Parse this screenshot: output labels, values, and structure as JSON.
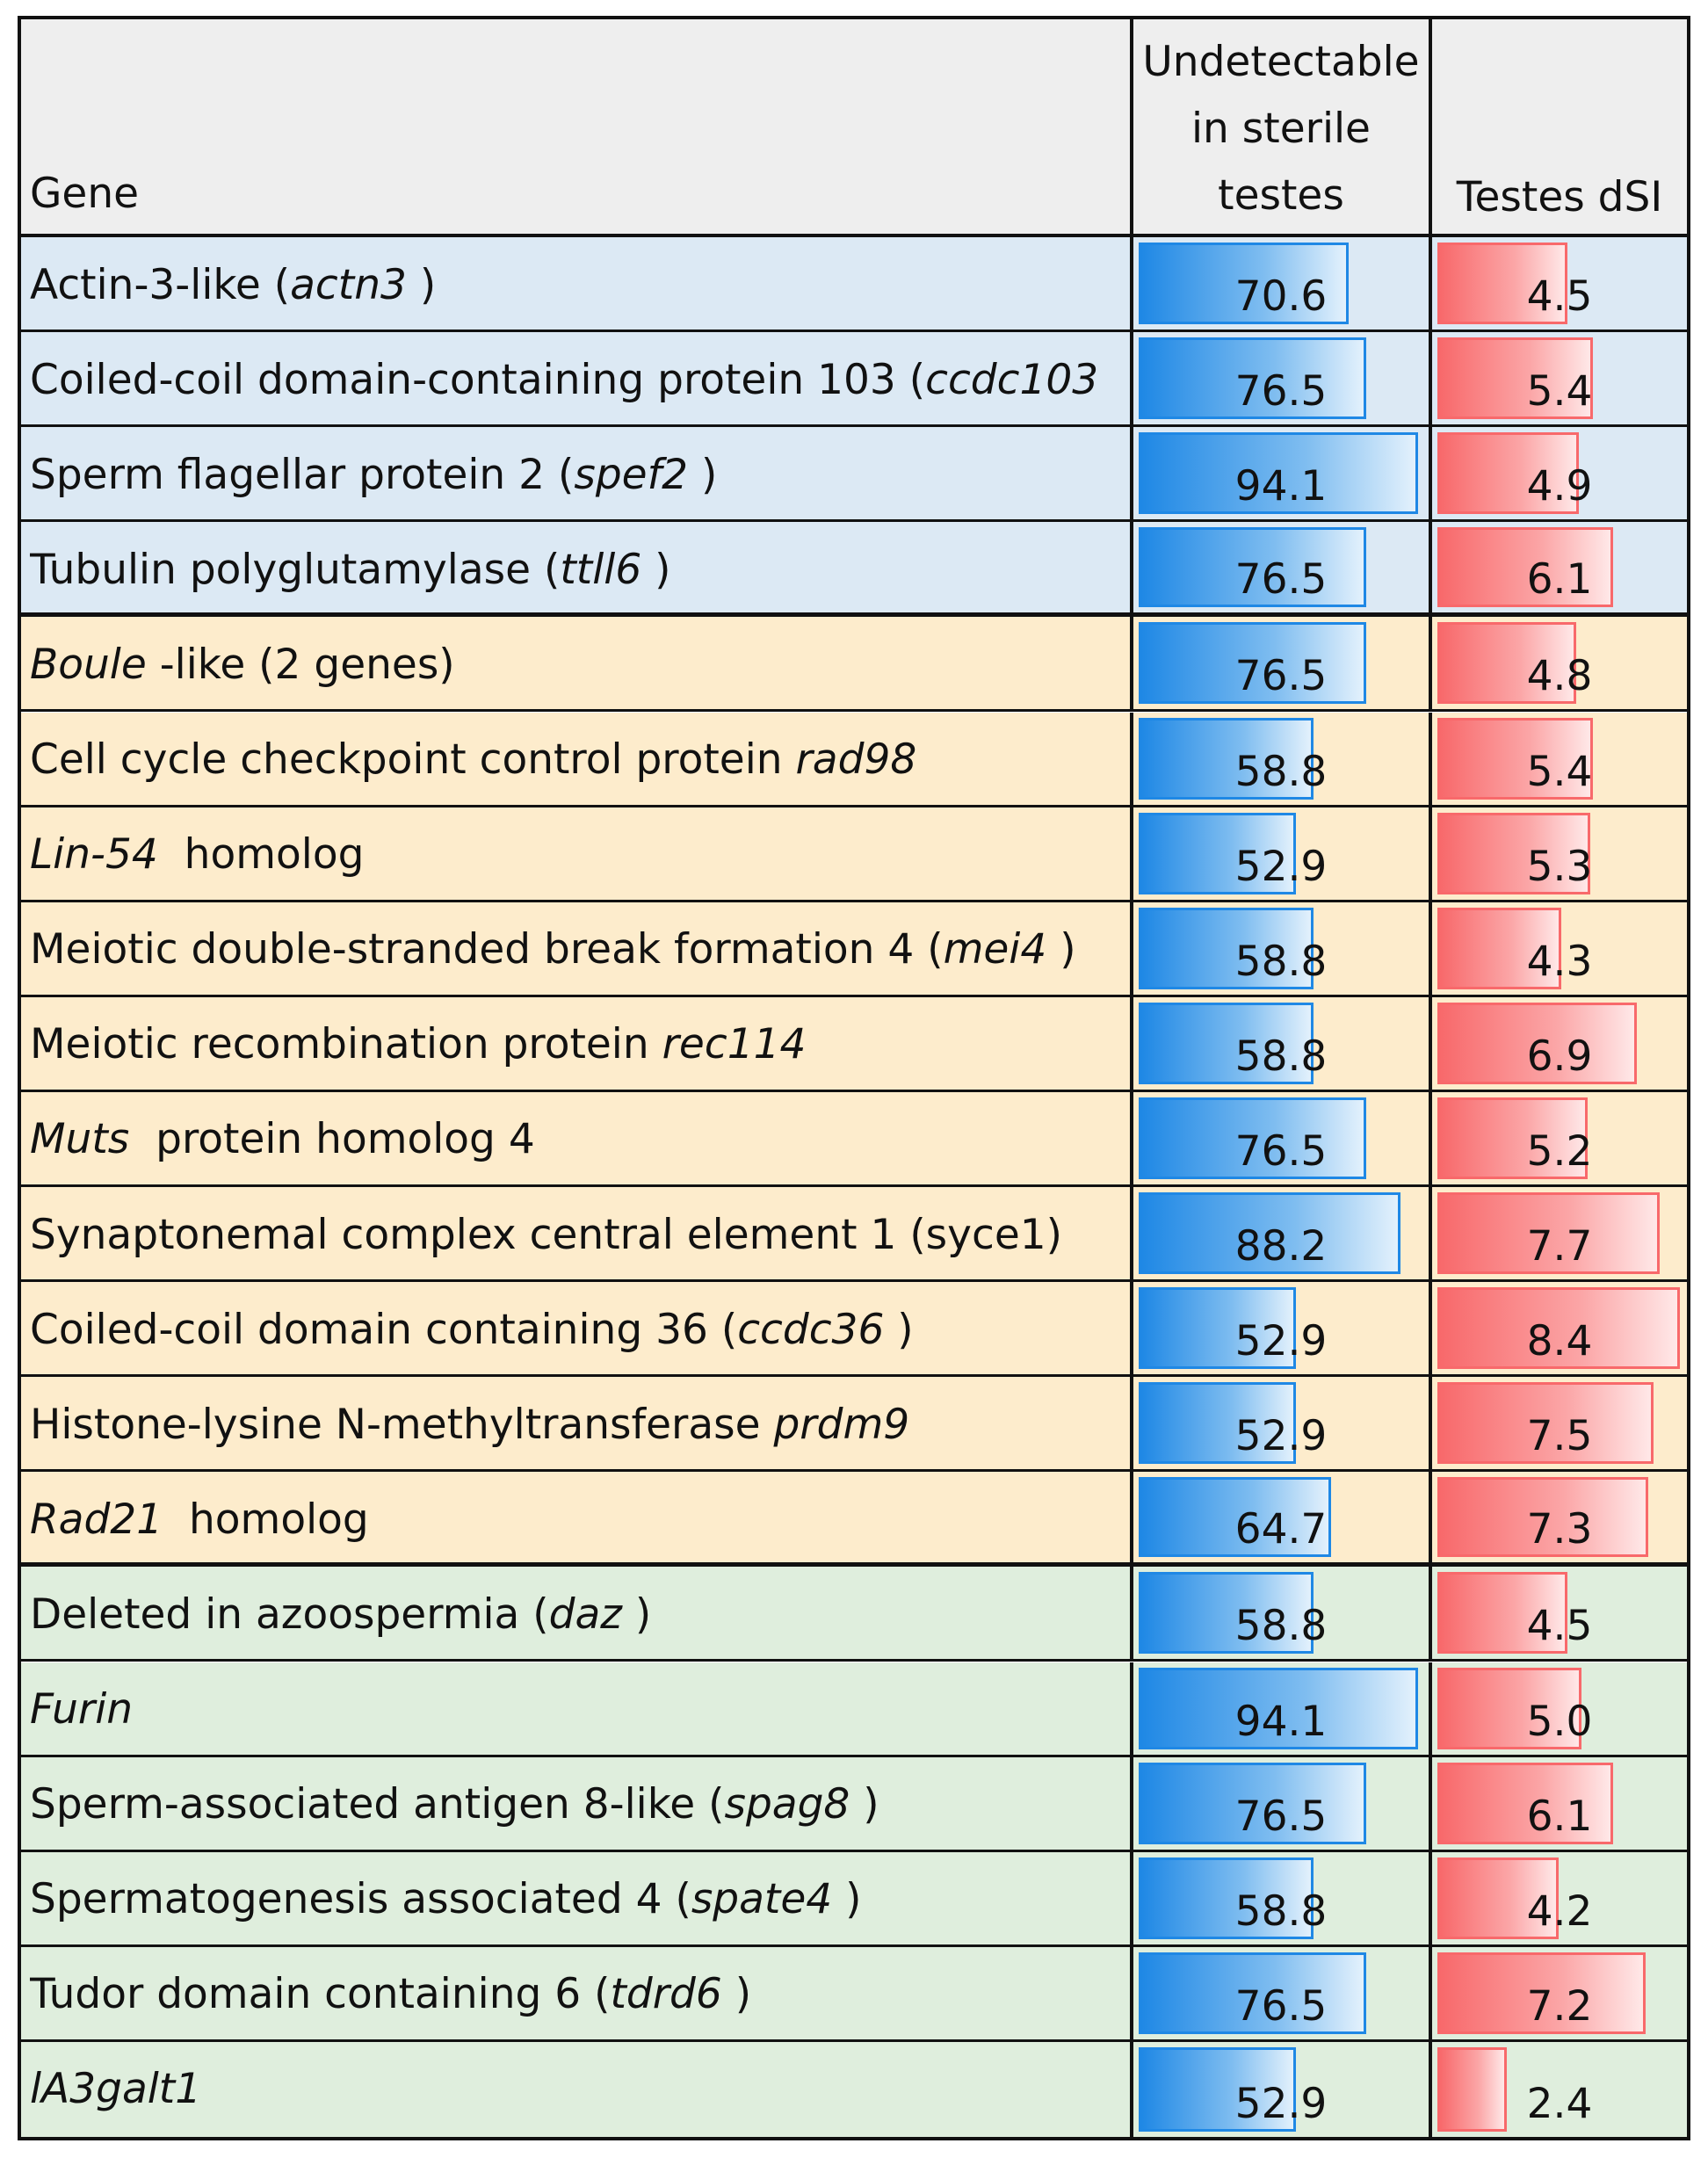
{
  "chart_data": {
    "type": "table",
    "columns": {
      "gene": "Gene",
      "undetectable": "Undetectable\nin sterile\ntestes",
      "dsi": "Testes dSI"
    },
    "undetectable_max": 94.1,
    "dsi_max": 8.4,
    "colors": {
      "blue_group": "#dce9f4",
      "orange_group": "#fdeccc",
      "green_group": "#dfeedd",
      "blue_bar": "#1f88e5",
      "red_bar": "#f8696b"
    },
    "rows": [
      {
        "group": "blue",
        "name": [
          {
            "t": "Actin-3-like ("
          },
          {
            "t": "actn3",
            "i": true
          },
          {
            "t": " )"
          }
        ],
        "undetectable": 70.6,
        "dsi": 4.5,
        "dsi_label": "4.5"
      },
      {
        "group": "blue",
        "name": [
          {
            "t": "Coiled-coil domain-containing protein 103 ("
          },
          {
            "t": "ccdc103",
            "i": true
          }
        ],
        "undetectable": 76.5,
        "dsi": 5.4,
        "dsi_label": "5.4"
      },
      {
        "group": "blue",
        "name": [
          {
            "t": "Sperm flagellar protein 2 ("
          },
          {
            "t": "spef2",
            "i": true
          },
          {
            "t": " )"
          }
        ],
        "undetectable": 94.1,
        "dsi": 4.9,
        "dsi_label": "4.9"
      },
      {
        "group": "blue",
        "name": [
          {
            "t": "Tubulin polyglutamylase ("
          },
          {
            "t": "ttll6",
            "i": true
          },
          {
            "t": " )"
          }
        ],
        "undetectable": 76.5,
        "dsi": 6.1,
        "dsi_label": "6.1"
      },
      {
        "group": "orange",
        "name": [
          {
            "t": "Boule",
            "i": true
          },
          {
            "t": " -like (2 genes)"
          }
        ],
        "undetectable": 76.5,
        "dsi": 4.8,
        "dsi_label": "4.8"
      },
      {
        "group": "orange",
        "name": [
          {
            "t": "Cell cycle checkpoint control protein "
          },
          {
            "t": "rad98",
            "i": true
          }
        ],
        "undetectable": 58.8,
        "dsi": 5.4,
        "dsi_label": "5.4"
      },
      {
        "group": "orange",
        "name": [
          {
            "t": "Lin-54",
            "i": true
          },
          {
            "t": "  homolog"
          }
        ],
        "undetectable": 52.9,
        "dsi": 5.3,
        "dsi_label": "5.3"
      },
      {
        "group": "orange",
        "name": [
          {
            "t": "Meiotic double-stranded break formation 4 ("
          },
          {
            "t": "mei4",
            "i": true
          },
          {
            "t": " )"
          }
        ],
        "undetectable": 58.8,
        "dsi": 4.3,
        "dsi_label": "4.3"
      },
      {
        "group": "orange",
        "name": [
          {
            "t": "Meiotic recombination protein "
          },
          {
            "t": "rec114",
            "i": true
          }
        ],
        "undetectable": 58.8,
        "dsi": 6.9,
        "dsi_label": "6.9"
      },
      {
        "group": "orange",
        "name": [
          {
            "t": "Muts",
            "i": true
          },
          {
            "t": "  protein homolog 4"
          }
        ],
        "undetectable": 76.5,
        "dsi": 5.2,
        "dsi_label": "5.2"
      },
      {
        "group": "orange",
        "name": [
          {
            "t": "Synaptonemal complex central element 1 (syce1)"
          }
        ],
        "undetectable": 88.2,
        "dsi": 7.7,
        "dsi_label": "7.7"
      },
      {
        "group": "orange",
        "name": [
          {
            "t": "Coiled-coil domain containing 36 ("
          },
          {
            "t": "ccdc36",
            "i": true
          },
          {
            "t": " )"
          }
        ],
        "undetectable": 52.9,
        "dsi": 8.4,
        "dsi_label": "8.4"
      },
      {
        "group": "orange",
        "name": [
          {
            "t": "Histone-lysine N-methyltransferase "
          },
          {
            "t": "prdm9",
            "i": true
          }
        ],
        "undetectable": 52.9,
        "dsi": 7.5,
        "dsi_label": "7.5"
      },
      {
        "group": "orange",
        "name": [
          {
            "t": "Rad21",
            "i": true
          },
          {
            "t": "  homolog"
          }
        ],
        "undetectable": 64.7,
        "dsi": 7.3,
        "dsi_label": "7.3"
      },
      {
        "group": "green",
        "name": [
          {
            "t": "Deleted in azoospermia ("
          },
          {
            "t": "daz",
            "i": true
          },
          {
            "t": " )"
          }
        ],
        "undetectable": 58.8,
        "dsi": 4.5,
        "dsi_label": "4.5"
      },
      {
        "group": "green",
        "name": [
          {
            "t": "Furin",
            "i": true
          }
        ],
        "undetectable": 94.1,
        "dsi": 5.0,
        "dsi_label": "5.0"
      },
      {
        "group": "green",
        "name": [
          {
            "t": "Sperm-associated antigen 8-like ("
          },
          {
            "t": "spag8",
            "i": true
          },
          {
            "t": " )"
          }
        ],
        "undetectable": 76.5,
        "dsi": 6.1,
        "dsi_label": "6.1"
      },
      {
        "group": "green",
        "name": [
          {
            "t": "Spermatogenesis associated 4 ("
          },
          {
            "t": "spate4",
            "i": true
          },
          {
            "t": " )"
          }
        ],
        "undetectable": 58.8,
        "dsi": 4.2,
        "dsi_label": "4.2"
      },
      {
        "group": "green",
        "name": [
          {
            "t": "Tudor domain containing 6 ("
          },
          {
            "t": "tdrd6",
            "i": true
          },
          {
            "t": " )"
          }
        ],
        "undetectable": 76.5,
        "dsi": 7.2,
        "dsi_label": "7.2"
      },
      {
        "group": "green",
        "name": [
          {
            "t": "lA3galt1",
            "i": true
          }
        ],
        "undetectable": 52.9,
        "dsi": 2.4,
        "dsi_label": "2.4"
      }
    ]
  }
}
